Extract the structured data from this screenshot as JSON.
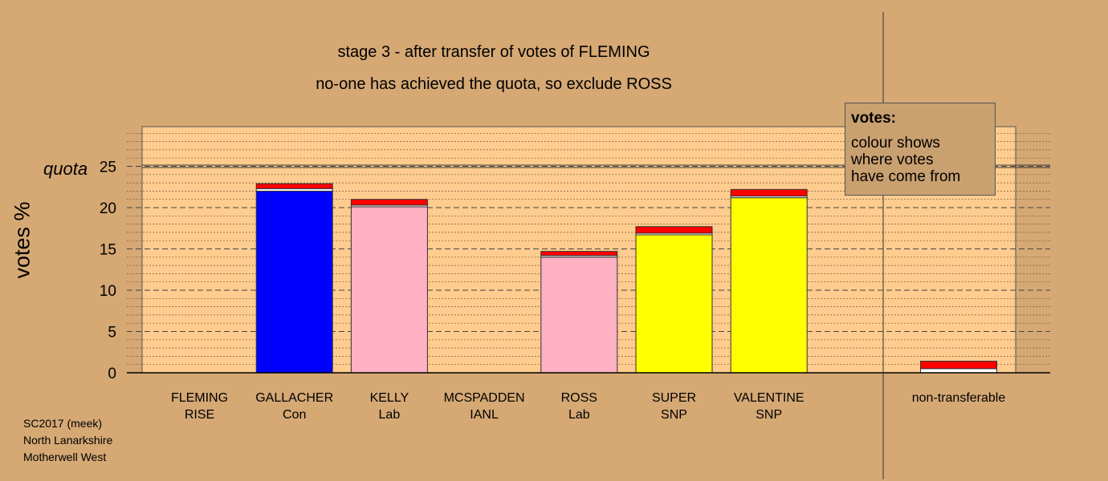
{
  "titles": {
    "line1": "stage 3 - after transfer of votes of FLEMING",
    "line2": "no-one has achieved the quota, so exclude ROSS"
  },
  "legend": {
    "title": "votes:",
    "lines": [
      "colour shows",
      "where votes",
      "have come from"
    ]
  },
  "footer": {
    "lines": [
      "SC2017 (meek)",
      "North Lanarkshire",
      "Motherwell West"
    ]
  },
  "quota_label": "quota",
  "colors": {
    "background": "#d5a874",
    "plot_background": "#fdcc8e",
    "transfer": "#ff0000",
    "Con": "#0000ff",
    "Lab": "#ffb0c2",
    "SNP": "#ffff00",
    "RISE": "#ffa500",
    "IANL": "#aaaaaa",
    "nontransferable": "#ffffff"
  },
  "chart_data": {
    "type": "bar",
    "ylabel": "votes %",
    "ylim": [
      0,
      30
    ],
    "yticks": [
      0,
      5,
      10,
      15,
      20,
      25
    ],
    "quota": 25,
    "grid": true,
    "categories": [
      "FLEMING RISE",
      "GALLACHER Con",
      "KELLY Lab",
      "MCSPADDEN IANL",
      "ROSS Lab",
      "SUPER SNP",
      "VALENTINE SNP"
    ],
    "candidates": [
      {
        "name": "FLEMING",
        "party": "RISE",
        "first": 0.0,
        "gap": 0.0,
        "transfer": 0.0
      },
      {
        "name": "GALLACHER",
        "party": "Con",
        "first": 22.0,
        "gap": 0.3,
        "transfer": 0.6
      },
      {
        "name": "KELLY",
        "party": "Lab",
        "first": 20.1,
        "gap": 0.2,
        "transfer": 0.7
      },
      {
        "name": "MCSPADDEN",
        "party": "IANL",
        "first": 0.0,
        "gap": 0.0,
        "transfer": 0.0
      },
      {
        "name": "ROSS",
        "party": "Lab",
        "first": 14.0,
        "gap": 0.2,
        "transfer": 0.5
      },
      {
        "name": "SUPER",
        "party": "SNP",
        "first": 16.7,
        "gap": 0.2,
        "transfer": 0.8
      },
      {
        "name": "VALENTINE",
        "party": "SNP",
        "first": 21.2,
        "gap": 0.2,
        "transfer": 0.8
      }
    ],
    "nontransferable": {
      "label": "non-transferable",
      "first": 0.0,
      "gap": 0.5,
      "transfer": 0.9
    }
  }
}
